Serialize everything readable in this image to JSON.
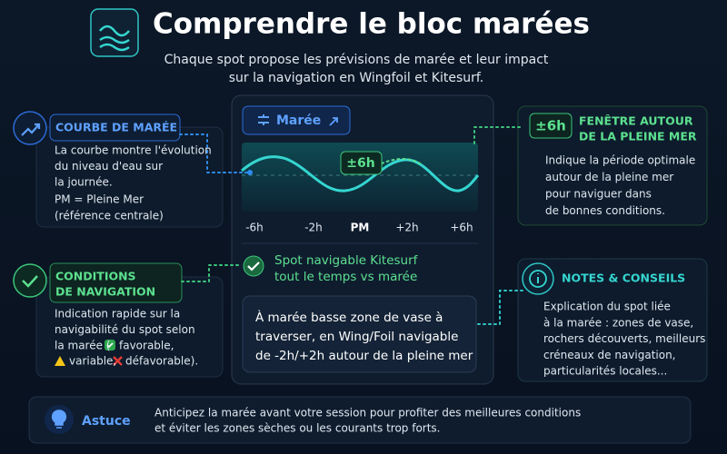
{
  "header": {
    "title": "Comprendre le bloc marées",
    "subtitle": [
      "Chaque spot propose les prévisions de marée et leur impact",
      "sur la navigation en Wingfoil et Kitesurf."
    ]
  },
  "panels": [
    {
      "title": "COURBE DE MARÉE",
      "body": [
        "La courbe montre l'évolution",
        "du niveau d'eau sur",
        "la journée."
      ],
      "note": [
        "PM = Pleine Mer",
        "(référence centrale)"
      ]
    },
    {
      "title": [
        "CONDITIONS",
        "DE NAVIGATION"
      ],
      "body": [
        "Indication rapide sur la",
        "navigabilité du spot selon"
      ],
      "legend": {
        "prefix": "la marée (",
        "favorable": "favorable,",
        "variable": "variable,",
        "unfavorable": "défavorable)."
      }
    },
    {
      "badge": "±6h",
      "title": [
        "FENÊTRE AUTOUR",
        "DE LA PLEINE MER"
      ],
      "body": [
        "Indique la période optimale",
        "autour de la pleine mer",
        "pour naviguer dans",
        "de bonnes conditions."
      ]
    },
    {
      "title": "NOTES & CONSEILS",
      "body": [
        "Explication du spot liée",
        "à la marée : zones de vase,",
        "rochers découverts, meilleurs",
        "créneaux de navigation,",
        "particularités locales..."
      ]
    }
  ],
  "card": {
    "button": "Marée",
    "window_badge": "±6h",
    "axis_labels": [
      "-6h",
      "-2h",
      "PM",
      "+2h",
      "+6h"
    ],
    "status": [
      "Spot navigable Kitesurf",
      "tout le temps vs marée"
    ],
    "note": [
      "À marée basse zone de vase à",
      "traverser, en Wing/Foil navigable",
      "de -2h/+2h autour de la pleine mer"
    ]
  },
  "tip": {
    "label": "Astuce",
    "text": [
      "Anticipez la marée avant votre session pour profiter des meilleures conditions",
      "et éviter les zones sèches ou les courants trop forts."
    ]
  }
}
